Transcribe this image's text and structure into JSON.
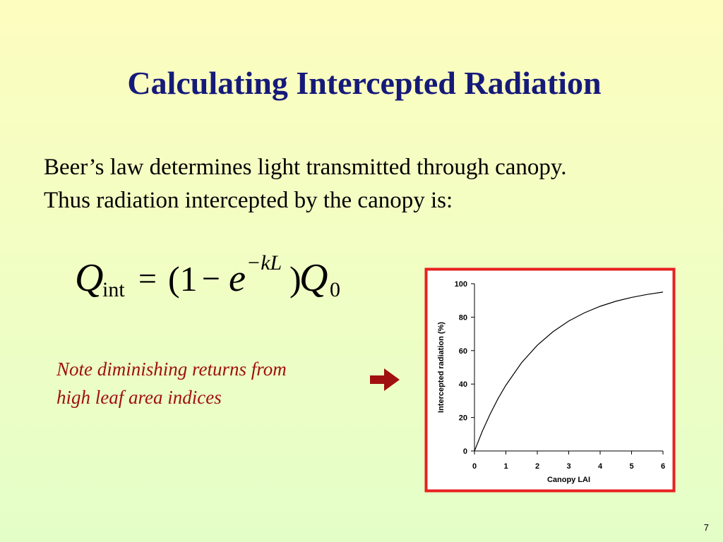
{
  "slide": {
    "title": "Calculating Intercepted Radiation",
    "body": [
      "Beer’s law determines light transmitted through canopy.",
      "Thus radiation intercepted by the canopy is:"
    ],
    "equation": [
      "Q",
      "int",
      "=",
      "(1",
      "−",
      "e",
      "−kL",
      ")",
      "Q",
      "0"
    ],
    "note": [
      "Note diminishing returns from",
      "high leaf area indices"
    ],
    "page_number": "7"
  },
  "chart_data": {
    "type": "line",
    "x_label": "Canopy LAI",
    "y_label": "Intercepted radiation (%)",
    "x": [
      0,
      0.25,
      0.5,
      0.75,
      1,
      1.5,
      2,
      2.5,
      3,
      3.5,
      4,
      4.5,
      5,
      5.5,
      6
    ],
    "values": [
      0,
      11.8,
      22.1,
      31.3,
      39.3,
      52.8,
      63.2,
      71.3,
      77.7,
      82.6,
      86.5,
      89.5,
      91.8,
      93.6,
      95.0
    ],
    "color": "#000000",
    "xlim": [
      0,
      6
    ],
    "xticks": [
      0,
      1,
      2,
      3,
      4,
      5,
      6
    ],
    "ylim": [
      0,
      100
    ],
    "yticks": [
      0,
      20,
      40,
      60,
      80,
      100
    ]
  }
}
